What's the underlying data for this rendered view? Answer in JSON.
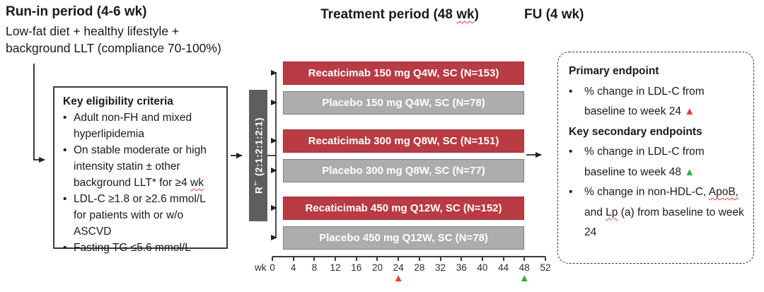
{
  "colors": {
    "drug_bg": "#b93b43",
    "drug_border": "#9e3038",
    "placebo_bg": "#acacac",
    "placebo_border": "#7d7d7d",
    "rand_bg": "#5e5e60",
    "triangle_red": "#ee3a2e",
    "triangle_green": "#33ad4f",
    "squiggle": "#e8392e"
  },
  "chars": {
    "bullet": "•",
    "triangle": "▲"
  },
  "header": {
    "runin_title": "Run-in period (4-6 wk)",
    "runin_line1": "Low-fat diet + healthy lifestyle +",
    "runin_line2": "background LLT (compliance 70-100%)",
    "treatment_pre": "Treatment period (48 ",
    "treatment_wavy": "wk",
    "treatment_post": ")",
    "fu_title": "FU (4 wk)"
  },
  "eligibility": {
    "title": "Key eligibility criteria",
    "bullets": [
      {
        "text": "Adult non-FH and mixed hyperlipidemia"
      },
      {
        "pre": "On stable moderate or high intensity statin ± other background LLT* for ≥4 ",
        "wavy": "wk"
      },
      {
        "text": "LDL-C ≥1.8 or ≥2.6 mmol/L for patients with or w/o ASCVD"
      },
      {
        "text": "Fasting TG ≤5.6 mmol/L"
      }
    ]
  },
  "randomization": {
    "r": "R",
    "dagger": "†",
    "ratio": " (2:1:2:1:2:1)"
  },
  "arms": [
    {
      "label": "Recaticimab 150 mg Q4W, SC (N=153)",
      "type": "drug"
    },
    {
      "label": "Placebo 150 mg Q4W, SC (N=78)",
      "type": "placebo"
    },
    {
      "label": "Recaticimab 300 mg Q8W, SC (N=151)",
      "type": "drug"
    },
    {
      "label": "Placebo 300 mg Q8W, SC (N=77)",
      "type": "placebo"
    },
    {
      "label": "Recaticimab 450 mg Q12W, SC (N=152)",
      "type": "drug"
    },
    {
      "label": "Placebo 450 mg Q12W, SC (N=78)",
      "type": "placebo"
    }
  ],
  "axis": {
    "unit_label": "wk",
    "weeks": [
      "0",
      "4",
      "8",
      "12",
      "16",
      "20",
      "24",
      "28",
      "32",
      "36",
      "40",
      "44",
      "48",
      "52"
    ],
    "red_triangle_week": "24",
    "green_triangle_week": "48"
  },
  "endpoints": {
    "primary_title": "Primary endpoint",
    "primary_bullet": "% change in LDL-C from baseline to week 24 ",
    "secondary_title": "Key secondary endpoints",
    "secondary_bullet1": "% change in LDL-C from baseline to week 48 ",
    "secondary_bullet2": {
      "pre": "% change in non-HDL-C, ",
      "wavy1": "ApoB,",
      "mid": " and ",
      "wavy2": "Lp",
      "post": " (a) from baseline to week 24"
    }
  }
}
